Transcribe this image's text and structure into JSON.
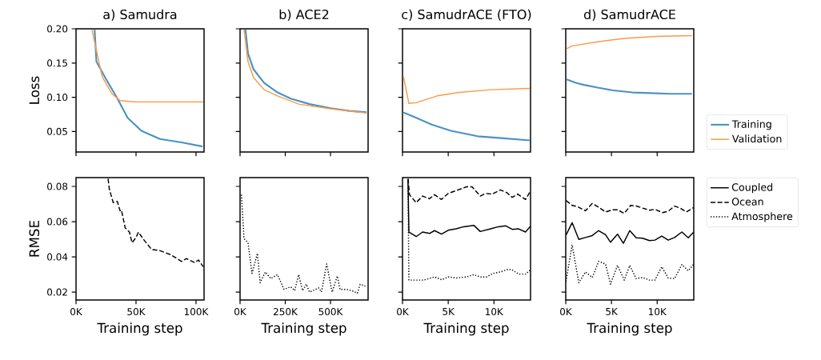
{
  "chart_data": [
    {
      "type": "line",
      "title": "a) Samudra",
      "ylabel": "Loss",
      "xlim": [
        0,
        106700
      ],
      "ylim": [
        0.02,
        0.2
      ],
      "xticks": [
        0,
        50000,
        100000
      ],
      "yticks": [
        0.05,
        {
          "value": 0.1,
          "label": "0.10"
        },
        0.15,
        {
          "value": 0.2,
          "label": "0.20"
        }
      ],
      "tick_labels": "y",
      "series": [
        {
          "color": "#4a92c6",
          "x": [
            15500,
            17000,
            25500,
            34500,
            43000,
            54500,
            70000,
            88000,
            105500
          ],
          "values": [
            0.199,
            0.152,
            0.125,
            0.098,
            0.07,
            0.051,
            0.039,
            0.034,
            0.028
          ]
        },
        {
          "color": "#fb9a47",
          "x": [
            13300,
            19000,
            22000,
            30000,
            36700,
            50000,
            106000
          ],
          "values": [
            0.199,
            0.152,
            0.129,
            0.105,
            0.095,
            0.093,
            0.093
          ]
        }
      ]
    },
    {
      "type": "line",
      "title": "b) ACE2",
      "xlim": [
        0,
        708000
      ],
      "ylim": [
        0.02,
        0.2
      ],
      "xticks": [
        0,
        250000,
        500000
      ],
      "yticks": [
        0.05,
        0.1,
        0.15,
        0.2
      ],
      "tick_labels": false,
      "series": [
        {
          "color": "#4a92c6",
          "x": [
            30000,
            44000,
            74000,
            133000,
            207000,
            280000,
            384000,
            501000,
            605000,
            700000
          ],
          "values": [
            0.199,
            0.164,
            0.141,
            0.121,
            0.107,
            0.098,
            0.09,
            0.084,
            0.08,
            0.078
          ]
        },
        {
          "color": "#fb9a47",
          "x": [
            22000,
            44000,
            74000,
            133000,
            207000,
            324000,
            501000,
            700000
          ],
          "values": [
            0.199,
            0.152,
            0.129,
            0.111,
            0.102,
            0.09,
            0.083,
            0.077
          ]
        }
      ]
    },
    {
      "type": "line",
      "title": "c) SamudrACE (FTO)",
      "xlim": [
        0,
        14000
      ],
      "ylim": [
        0.02,
        0.2
      ],
      "xticks": [
        0,
        5000,
        10000
      ],
      "yticks": [
        0.05,
        0.1,
        0.15,
        0.2
      ],
      "tick_labels": false,
      "series": [
        {
          "color": "#4a92c6",
          "x": [
            60,
            1500,
            3200,
            5300,
            8200,
            11100,
            13900
          ],
          "values": [
            0.078,
            0.07,
            0.06,
            0.051,
            0.043,
            0.04,
            0.037
          ]
        },
        {
          "color": "#fb9a47",
          "x": [
            90,
            700,
            1500,
            3800,
            6200,
            9700,
            13900
          ],
          "values": [
            0.131,
            0.091,
            0.092,
            0.102,
            0.107,
            0.111,
            0.113
          ]
        }
      ]
    },
    {
      "type": "line",
      "title": "d) SamudrACE",
      "xlim": [
        0,
        14000
      ],
      "ylim": [
        0.02,
        0.2
      ],
      "xticks": [
        0,
        5000,
        10000
      ],
      "yticks": [
        0.05,
        0.1,
        0.15,
        0.2
      ],
      "tick_labels": false,
      "legend": "bottom right",
      "series": [
        {
          "name": "Training",
          "color": "#4a92c6",
          "x": [
            100,
            1100,
            2000,
            3500,
            5200,
            7300,
            9300,
            11350,
            13800
          ],
          "values": [
            0.126,
            0.121,
            0.118,
            0.114,
            0.11,
            0.107,
            0.106,
            0.105,
            0.105
          ]
        },
        {
          "name": "Validation",
          "color": "#fb9a47",
          "x": [
            100,
            700,
            3500,
            6400,
            9900,
            13800
          ],
          "values": [
            0.171,
            0.175,
            0.181,
            0.186,
            0.189,
            0.19
          ]
        }
      ]
    },
    {
      "type": "line",
      "xlabel": "Training step",
      "ylabel": "RMSE",
      "xlim": [
        0,
        106700
      ],
      "ylim": [
        0.0155,
        0.085
      ],
      "xticks": [
        {
          "value": 0,
          "label": "0K"
        },
        {
          "value": 50000,
          "label": "50K"
        },
        {
          "value": 100000,
          "label": "100K"
        }
      ],
      "yticks": [
        0.02,
        0.04,
        0.06,
        0.08
      ],
      "series": [
        {
          "color": "#000000",
          "line_style": "dashed",
          "x": [
            26700,
            27800,
            31000,
            34400,
            36700,
            37800,
            41000,
            44500,
            46700,
            50000,
            52000,
            56700,
            63000,
            70000,
            79000,
            88000,
            92000,
            99000,
            102000,
            106000
          ],
          "values": [
            0.0844,
            0.0783,
            0.0708,
            0.0715,
            0.0662,
            0.0667,
            0.0564,
            0.0541,
            0.048,
            0.051,
            0.0541,
            0.0495,
            0.0442,
            0.0435,
            0.0412,
            0.0374,
            0.039,
            0.0367,
            0.0382,
            0.0344
          ]
        }
      ]
    },
    {
      "type": "line",
      "xlabel": "Training step",
      "xlim": [
        0,
        708000
      ],
      "ylim": [
        0.0155,
        0.085
      ],
      "xticks": [
        {
          "value": 0,
          "label": "0K"
        },
        {
          "value": 250000,
          "label": "250K"
        },
        {
          "value": 500000,
          "label": "500K"
        }
      ],
      "yticks": [
        0.02,
        0.04,
        0.06,
        0.08
      ],
      "tick_labels": "x",
      "series": [
        {
          "color": "#000000",
          "line_style": "dotted",
          "x": [
            7500,
            22000,
            44000,
            66000,
            96000,
            111000,
            140000,
            170000,
            207000,
            243000,
            280000,
            302000,
            324000,
            346000,
            366000,
            384000,
            435000,
            450000,
            479000,
            509000,
            538000,
            553000,
            590000,
            619000,
            649000,
            664000,
            693000
          ],
          "values": [
            0.0753,
            0.0503,
            0.048,
            0.0306,
            0.042,
            0.0253,
            0.0314,
            0.0276,
            0.0299,
            0.0215,
            0.023,
            0.0208,
            0.0299,
            0.0208,
            0.0245,
            0.02,
            0.0223,
            0.02,
            0.0359,
            0.02,
            0.0291,
            0.0215,
            0.0215,
            0.0208,
            0.0194,
            0.0244,
            0.0234
          ]
        }
      ]
    },
    {
      "type": "line",
      "xlabel": "Training step",
      "xlim": [
        0,
        14000
      ],
      "ylim": [
        0.0155,
        0.085
      ],
      "xticks": [
        {
          "value": 0,
          "label": "0K"
        },
        {
          "value": 5000,
          "label": "5K"
        },
        {
          "value": 10000,
          "label": "10K"
        }
      ],
      "yticks": [
        0.02,
        0.04,
        0.06,
        0.08
      ],
      "tick_labels": "x",
      "series": [
        {
          "color": "#000000",
          "line_style": "solid",
          "x": [
            600,
            700,
            1500,
            2200,
            2950,
            3500,
            4260,
            5000,
            5860,
            6700,
            7800,
            8500,
            9650,
            10500,
            11300,
            12000,
            12700,
            13450,
            14000
          ],
          "values": [
            0.084,
            0.0541,
            0.0515,
            0.0541,
            0.0533,
            0.0549,
            0.0529,
            0.0551,
            0.0559,
            0.0571,
            0.0579,
            0.0544,
            0.0559,
            0.0571,
            0.0576,
            0.0556,
            0.0559,
            0.0541,
            0.0574
          ]
        },
        {
          "color": "#000000",
          "line_style": "dashed",
          "x": [
            610,
            760,
            1490,
            2200,
            2950,
            3500,
            4260,
            5000,
            5860,
            7000,
            7600,
            8500,
            9100,
            9800,
            10700,
            11400,
            12000,
            12600,
            13450,
            13900
          ],
          "values": [
            0.0844,
            0.0753,
            0.0708,
            0.0745,
            0.073,
            0.0753,
            0.0726,
            0.076,
            0.0776,
            0.0798,
            0.0798,
            0.0745,
            0.076,
            0.0756,
            0.078,
            0.0765,
            0.0738,
            0.0756,
            0.0726,
            0.0765
          ]
        },
        {
          "color": "#000000",
          "line_style": "dotted",
          "x": [
            600,
            700,
            1500,
            2300,
            3500,
            4300,
            5000,
            5900,
            7000,
            7800,
            8500,
            9200,
            9900,
            10700,
            11550,
            12000,
            12700,
            13450,
            14000
          ],
          "values": [
            0.084,
            0.0268,
            0.0268,
            0.0268,
            0.0286,
            0.027,
            0.0286,
            0.028,
            0.0286,
            0.0299,
            0.0286,
            0.0286,
            0.0306,
            0.0314,
            0.0329,
            0.0326,
            0.0302,
            0.0302,
            0.0326
          ]
        }
      ]
    },
    {
      "type": "line",
      "xlabel": "Training step",
      "xlim": [
        0,
        14000
      ],
      "ylim": [
        0.0155,
        0.085
      ],
      "xticks": [
        {
          "value": 0,
          "label": "0K"
        },
        {
          "value": 5000,
          "label": "5K"
        },
        {
          "value": 10000,
          "label": "10K"
        }
      ],
      "yticks": [
        0.02,
        0.04,
        0.06,
        0.08
      ],
      "tick_labels": "x",
      "legend": "top right",
      "series": [
        {
          "name": "Coupled",
          "color": "#000000",
          "line_style": "solid",
          "x": [
            30,
            700,
            1430,
            2160,
            2900,
            3600,
            4350,
            4900,
            5660,
            6300,
            7000,
            7700,
            8400,
            9160,
            9750,
            10500,
            11200,
            11900,
            12700,
            13400,
            14000
          ],
          "values": [
            0.0523,
            0.0594,
            0.0499,
            0.051,
            0.0521,
            0.0549,
            0.0526,
            0.0483,
            0.0529,
            0.0477,
            0.0549,
            0.0508,
            0.0506,
            0.0492,
            0.0495,
            0.0518,
            0.0495,
            0.051,
            0.0541,
            0.0508,
            0.0541
          ]
        },
        {
          "name": "Ocean",
          "color": "#000000",
          "line_style": "dashed",
          "x": [
            30,
            700,
            1300,
            2160,
            2900,
            3500,
            4350,
            5100,
            5660,
            6400,
            7100,
            7700,
            8400,
            9160,
            9750,
            10600,
            11200,
            11900,
            12500,
            13200,
            14000
          ],
          "values": [
            0.072,
            0.0692,
            0.0685,
            0.0662,
            0.0703,
            0.0685,
            0.0655,
            0.0667,
            0.0667,
            0.0647,
            0.0692,
            0.0689,
            0.0677,
            0.0665,
            0.067,
            0.0651,
            0.0659,
            0.0688,
            0.0677,
            0.0655,
            0.068
          ]
        },
        {
          "name": "Atmosphere",
          "color": "#000000",
          "line_style": "dotted",
          "x": [
            30,
            700,
            1430,
            2160,
            2900,
            3600,
            4350,
            4900,
            5660,
            6400,
            7000,
            7700,
            8400,
            9160,
            9750,
            10500,
            11200,
            11900,
            12700,
            13400,
            14000
          ],
          "values": [
            0.026,
            0.0468,
            0.0253,
            0.0314,
            0.0283,
            0.0374,
            0.0359,
            0.0245,
            0.0351,
            0.0268,
            0.0351,
            0.0276,
            0.0283,
            0.0268,
            0.0268,
            0.0344,
            0.028,
            0.0276,
            0.0356,
            0.0321,
            0.0359
          ]
        }
      ]
    }
  ]
}
